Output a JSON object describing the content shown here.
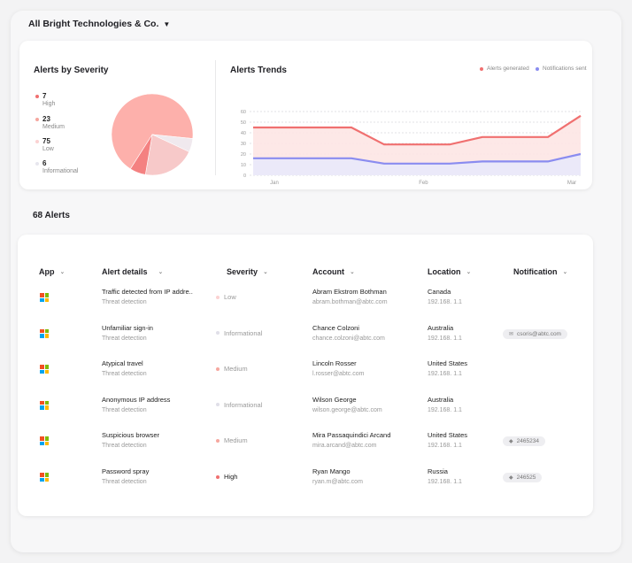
{
  "org": {
    "name": "All Bright Technologies & Co."
  },
  "severity": {
    "title": "Alerts by Severity",
    "items": [
      {
        "count": "7",
        "label": "High",
        "color": "#f07070"
      },
      {
        "count": "23",
        "label": "Medium",
        "color": "#f6a79f"
      },
      {
        "count": "75",
        "label": "Low",
        "color": "#fbd2d2"
      },
      {
        "count": "6",
        "label": "Informational",
        "color": "#e7e6ee"
      }
    ]
  },
  "trends": {
    "title": "Alerts Trends",
    "legend": [
      {
        "label": "Alerts generated",
        "color": "#f07070"
      },
      {
        "label": "Notifications sent",
        "color": "#8a8cf0"
      }
    ]
  },
  "chart_data": [
    {
      "type": "pie",
      "categories": [
        "High",
        "Medium",
        "Low",
        "Informational"
      ],
      "values": [
        7,
        23,
        75,
        6
      ]
    },
    {
      "type": "area",
      "x": [
        0,
        1,
        2,
        3,
        4,
        5,
        6,
        7,
        8,
        9,
        10
      ],
      "tick_labels": [
        "Jan",
        "Feb",
        "Mar"
      ],
      "yticks": [
        0,
        10,
        20,
        30,
        40,
        50,
        60
      ],
      "ylim": [
        0,
        60
      ],
      "series": [
        {
          "name": "Alerts generated",
          "values": [
            45,
            45,
            45,
            45,
            29,
            29,
            29,
            36,
            36,
            36,
            56
          ]
        },
        {
          "name": "Notifications sent",
          "values": [
            16,
            16,
            16,
            16,
            11,
            11,
            11,
            13,
            13,
            13,
            20
          ]
        }
      ]
    }
  ],
  "alerts": {
    "count_label": "68 Alerts",
    "columns": [
      "App",
      "Alert details",
      "Severity",
      "Account",
      "Location",
      "Notification"
    ],
    "rows": [
      {
        "title": "Traffic detected from IP addre..",
        "type": "Threat detection",
        "severity": "Low",
        "sev_color": "#fbd2d2",
        "name": "Abram Ekstrom Bothman",
        "email": "abram.bothman@abtc.com",
        "country": "Canada",
        "ip": "192.168. 1.1",
        "notification": ""
      },
      {
        "title": "Unfamiliar sign-in",
        "type": "Threat detection",
        "severity": "Informational",
        "sev_color": "#e0dfe8",
        "name": "Chance Colzoni",
        "email": "chance.colzoni@abtc.com",
        "country": "Australia",
        "ip": "192.168. 1.1",
        "notification": "csoris@abtc.com"
      },
      {
        "title": "Atypical travel",
        "type": "Threat detection",
        "severity": "Medium",
        "sev_color": "#f6a79f",
        "name": "Lincoln Rosser",
        "email": "l.rosser@abtc.com",
        "country": "United States",
        "ip": "192.168. 1.1",
        "notification": ""
      },
      {
        "title": "Anonymous IP address",
        "type": "Threat detection",
        "severity": "Informational",
        "sev_color": "#e0dfe8",
        "name": "Wilson George",
        "email": "wilson.george@abtc.com",
        "country": "Australia",
        "ip": "192.168. 1.1",
        "notification": ""
      },
      {
        "title": "Suspicious browser",
        "type": "Threat detection",
        "severity": "Medium",
        "sev_color": "#f6a79f",
        "name": "Mira Passaquindici Arcand",
        "email": "mira.arcand@abtc.com",
        "country": "United States",
        "ip": "192.168. 1.1",
        "notification": "2465234"
      },
      {
        "title": "Password spray",
        "type": "Threat detection",
        "severity": "High",
        "sev_color": "#f07070",
        "name": "Ryan Mango",
        "email": "ryan.m@abtc.com",
        "country": "Russia",
        "ip": "192.168. 1.1",
        "notification": "246525"
      }
    ]
  }
}
